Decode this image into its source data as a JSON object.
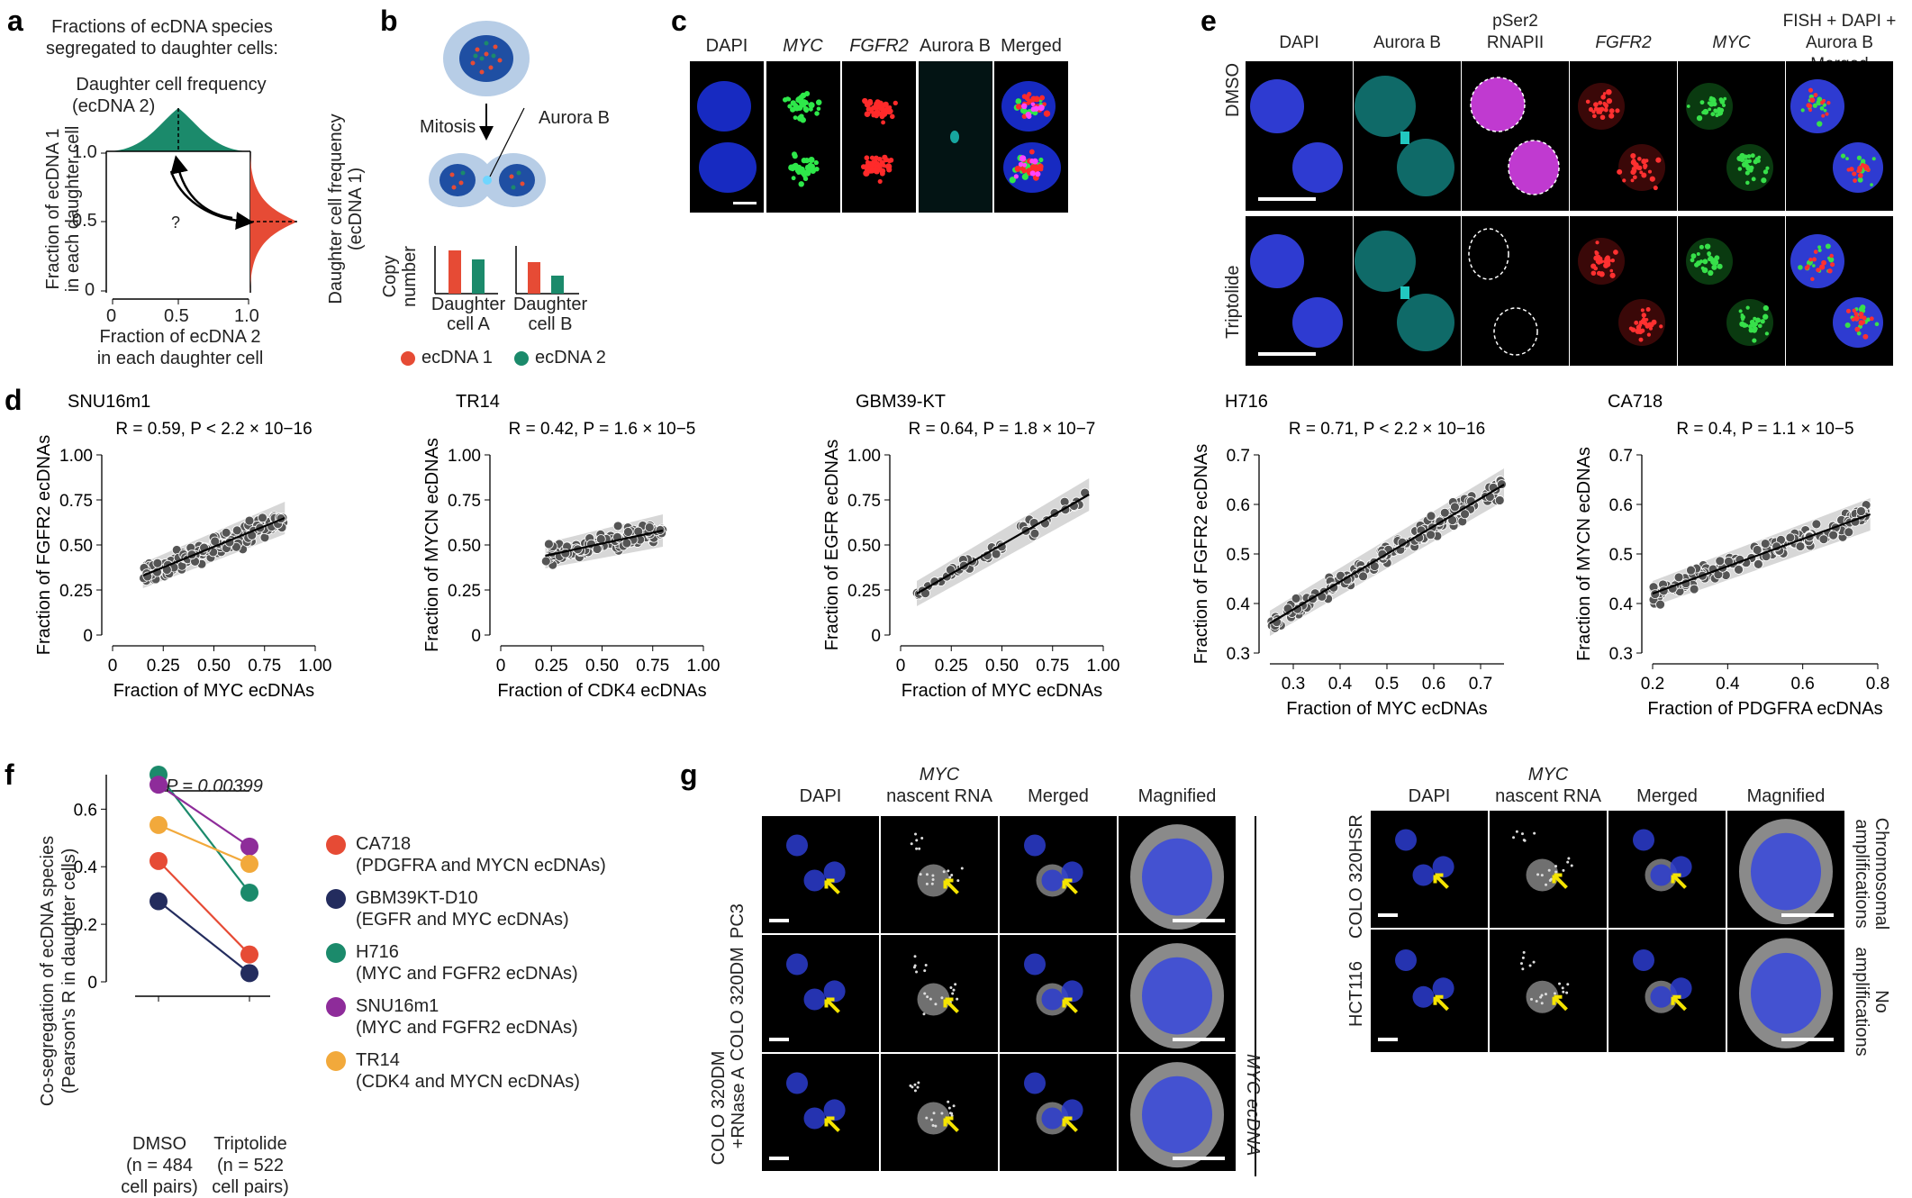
{
  "panels": {
    "a": {
      "label": "a",
      "title_line1": "Fractions of ecDNA species",
      "title_line2": "segregated to daughter cells:",
      "top_dist_line1": "Daughter cell frequency",
      "top_dist_line2": "(ecDNA 2)",
      "right_dist_line1": "Daughter cell frequency",
      "right_dist_line2": "(ecDNA 1)",
      "ylabel_line1": "Fraction of ecDNA 1",
      "ylabel_line2": "in each daughter cell",
      "xlabel_line1": "Fraction of ecDNA 2",
      "xlabel_line2": "in each daughter cell",
      "question": "?",
      "yticks": [
        "1.0",
        "0.5",
        "0"
      ],
      "xticks": [
        "0",
        "0.5",
        "1.0"
      ]
    },
    "b": {
      "label": "b",
      "mitosis": "Mitosis",
      "aurora": "Aurora B",
      "copy_number_line1": "Copy",
      "copy_number_line2": "number",
      "cellA_line1": "Daughter",
      "cellA_line2": "cell A",
      "cellB_line1": "Daughter",
      "cellB_line2": "cell B",
      "legend1": "ecDNA 1",
      "legend2": "ecDNA 2"
    },
    "c": {
      "label": "c",
      "columns": [
        "DAPI",
        "MYC",
        "FGFR2",
        "Aurora B",
        "Merged"
      ]
    },
    "e": {
      "label": "e",
      "columns": [
        "DAPI",
        "Aurora B",
        "pSer2\nRNAPII",
        "FGFR2",
        "MYC",
        "FISH + DAPI +\nAurora B Merged"
      ],
      "col_line1": [
        "DAPI",
        "Aurora B",
        "pSer2",
        "FGFR2",
        "MYC",
        "FISH + DAPI +"
      ],
      "col_line2": [
        "",
        "",
        "RNAPII",
        "",
        "",
        "Aurora B Merged"
      ],
      "rows": [
        "DMSO",
        "Triptolide"
      ]
    },
    "d": {
      "label": "d"
    },
    "f": {
      "label": "f",
      "pvalue": "P = 0.00399",
      "ylabel_line1": "Co-segregation of ecDNA species",
      "ylabel_line2": "(Pearson's R in daughter cells)",
      "x1_line1": "DMSO",
      "x1_line2": "(n = 484",
      "x1_line3": "cell pairs)",
      "x2_line1": "Triptolide",
      "x2_line2": "(n = 522",
      "x2_line3": "cell pairs)",
      "yticks": [
        "0.6",
        "0.4",
        "0.2",
        "0"
      ],
      "legend": [
        {
          "name": "CA718",
          "detail": "(PDGFRA and MYCN ecDNAs)",
          "color": "#e64b35"
        },
        {
          "name": "GBM39KT-D10",
          "detail": "(EGFR and MYC ecDNAs)",
          "color": "#232c5e"
        },
        {
          "name": "H716",
          "detail": "(MYC and FGFR2 ecDNAs)",
          "color": "#1b8a6b"
        },
        {
          "name": "SNU16m1",
          "detail": "(MYC and FGFR2 ecDNAs)",
          "color": "#8e2c9a"
        },
        {
          "name": "TR14",
          "detail": "(CDK4 and MYCN ecDNAs)",
          "color": "#f2a93b"
        }
      ]
    },
    "g": {
      "label": "g",
      "left_columns": [
        "DAPI",
        "MYC\nnascent RNA",
        "Merged",
        "Magnified"
      ],
      "col1": "DAPI",
      "col2_line1": "MYC",
      "col2_line2": "nascent RNA",
      "col3": "Merged",
      "col4": "Magnified",
      "left_rows": [
        "PC3",
        "COLO 320DM",
        "COLO 320DM\n+RNase A"
      ],
      "row1": "PC3",
      "row2": "COLO 320DM",
      "row3_line1": "COLO 320DM",
      "row3_line2": "+RNase A",
      "left_bracket": "MYC ecDNA",
      "right_row1": "COLO 320HSR",
      "right_row2": "HCT116",
      "right_bracket1_line1": "Chromosomal",
      "right_bracket1_line2": "amplifications",
      "right_bracket2_line1": "No",
      "right_bracket2_line2": "amplifications"
    }
  },
  "chart_data": [
    {
      "type": "scatter",
      "id": "SNU16m1",
      "title": "SNU16m1",
      "stat": "R = 0.59, P < 2.2 × 10−16",
      "xlabel": "Fraction of MYC ecDNAs",
      "ylabel": "Fraction of FGFR2 ecDNAs",
      "xlim": [
        0,
        1.0
      ],
      "ylim": [
        0,
        1.0
      ],
      "xticks": [
        "0",
        "0.25",
        "0.50",
        "0.75",
        "1.00"
      ],
      "yticks": [
        "0",
        "0.25",
        "0.50",
        "0.75",
        "1.00"
      ],
      "fit": {
        "x0": 0.15,
        "y0": 0.33,
        "x1": 0.85,
        "y1": 0.65
      }
    },
    {
      "type": "scatter",
      "id": "TR14",
      "title": "TR14",
      "stat": "R = 0.42, P = 1.6 × 10−5",
      "xlabel": "Fraction of CDK4 ecDNAs",
      "ylabel": "Fraction of MYCN ecDNAs",
      "xlim": [
        0,
        1.0
      ],
      "ylim": [
        0,
        1.0
      ],
      "xticks": [
        "0",
        "0.25",
        "0.50",
        "0.75",
        "1.00"
      ],
      "yticks": [
        "0",
        "0.25",
        "0.50",
        "0.75",
        "1.00"
      ],
      "fit": {
        "x0": 0.22,
        "y0": 0.44,
        "x1": 0.8,
        "y1": 0.58
      }
    },
    {
      "type": "scatter",
      "id": "GBM39-KT",
      "title": "GBM39-KT",
      "stat": "R = 0.64, P = 1.8 × 10−7",
      "xlabel": "Fraction of MYC ecDNAs",
      "ylabel": "Fraction of EGFR ecDNAs",
      "xlim": [
        0,
        1.0
      ],
      "ylim": [
        0,
        1.0
      ],
      "xticks": [
        "0",
        "0.25",
        "0.50",
        "0.75",
        "1.00"
      ],
      "yticks": [
        "0",
        "0.25",
        "0.50",
        "0.75",
        "1.00"
      ],
      "fit": {
        "x0": 0.08,
        "y0": 0.23,
        "x1": 0.93,
        "y1": 0.78
      }
    },
    {
      "type": "scatter",
      "id": "H716",
      "title": "H716",
      "stat": "R = 0.71, P < 2.2 × 10−16",
      "xlabel": "Fraction of MYC ecDNAs",
      "ylabel": "Fraction of FGFR2 ecDNAs",
      "xlim": [
        0.25,
        0.75
      ],
      "ylim": [
        0.3,
        0.7
      ],
      "xticks": [
        "0.3",
        "0.4",
        "0.5",
        "0.6",
        "0.7"
      ],
      "yticks": [
        "0.3",
        "0.4",
        "0.5",
        "0.6",
        "0.7"
      ],
      "fit": {
        "x0": 0.25,
        "y0": 0.36,
        "x1": 0.75,
        "y1": 0.64
      }
    },
    {
      "type": "scatter",
      "id": "CA718",
      "title": "CA718",
      "stat": "R = 0.4,  P = 1.1 × 10−5",
      "xlabel": "Fraction of PDGFRA ecDNAs",
      "ylabel": "Fraction of MYCN ecDNAs",
      "xlim": [
        0.2,
        0.8
      ],
      "ylim": [
        0.3,
        0.7
      ],
      "xticks": [
        "0.2",
        "0.4",
        "0.6",
        "0.8"
      ],
      "yticks": [
        "0.3",
        "0.4",
        "0.5",
        "0.6",
        "0.7"
      ],
      "fit": {
        "x0": 0.2,
        "y0": 0.42,
        "x1": 0.78,
        "y1": 0.58
      }
    },
    {
      "type": "line",
      "id": "cosegregation",
      "categories": [
        "DMSO",
        "Triptolide"
      ],
      "ylim": [
        0,
        0.72
      ],
      "series": [
        {
          "name": "CA718",
          "values": [
            0.42,
            0.095
          ],
          "color": "#e64b35"
        },
        {
          "name": "GBM39KT-D10",
          "values": [
            0.28,
            0.03
          ],
          "color": "#232c5e"
        },
        {
          "name": "H716",
          "values": [
            0.72,
            0.31
          ],
          "color": "#1b8a6b"
        },
        {
          "name": "SNU16m1",
          "values": [
            0.685,
            0.47
          ],
          "color": "#8e2c9a"
        },
        {
          "name": "TR14",
          "values": [
            0.545,
            0.41
          ],
          "color": "#f2a93b"
        }
      ]
    }
  ]
}
